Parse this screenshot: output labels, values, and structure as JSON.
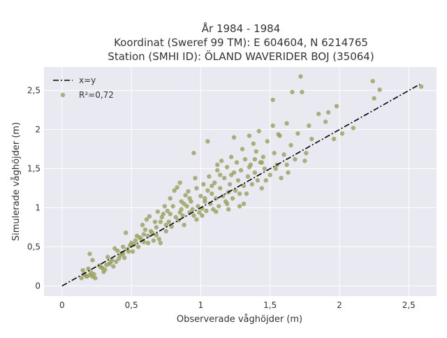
{
  "chart_data": {
    "type": "scatter",
    "title_lines": [
      "År 1984 - 1984",
      "Koordinat (Sweref 99 TM): E 604604, N 6214765",
      "Station (SMHI ID): ÖLAND WAVERIDER BOJ (35064)"
    ],
    "xlabel": "Observerade våghöjder (m)",
    "ylabel": "Simulerade våghöjder (m)",
    "xlim": [
      -0.13,
      2.7
    ],
    "ylim": [
      -0.13,
      2.8
    ],
    "xticks": [
      0,
      0.5,
      1,
      1.5,
      2,
      2.5
    ],
    "xtick_labels": [
      "0",
      "0,5",
      "1",
      "1,5",
      "2",
      "2,5"
    ],
    "yticks": [
      0,
      0.5,
      1,
      1.5,
      2,
      2.5
    ],
    "ytick_labels": [
      "0",
      "0,5",
      "1",
      "1,5",
      "2",
      "2,5"
    ],
    "grid": true,
    "legend_position": "top-left",
    "colors": {
      "points": "#98a05a",
      "line": "#000000",
      "plot_bg": "#e9e9f2"
    },
    "reference_line": {
      "name": "x=y",
      "style": "dash-dot",
      "from": [
        0,
        0
      ],
      "to": [
        2.58,
        2.58
      ]
    },
    "series": [
      {
        "name": "R²=0,72",
        "points": [
          [
            0.14,
            0.1
          ],
          [
            0.16,
            0.15
          ],
          [
            0.18,
            0.12
          ],
          [
            0.2,
            0.14
          ],
          [
            0.22,
            0.12
          ],
          [
            0.15,
            0.2
          ],
          [
            0.19,
            0.22
          ],
          [
            0.24,
            0.1
          ],
          [
            0.17,
            0.13
          ],
          [
            0.21,
            0.17
          ],
          [
            0.23,
            0.15
          ],
          [
            0.2,
            0.41
          ],
          [
            0.22,
            0.33
          ],
          [
            0.27,
            0.26
          ],
          [
            0.3,
            0.18
          ],
          [
            0.29,
            0.23
          ],
          [
            0.31,
            0.21
          ],
          [
            0.34,
            0.28
          ],
          [
            0.36,
            0.33
          ],
          [
            0.33,
            0.37
          ],
          [
            0.37,
            0.25
          ],
          [
            0.39,
            0.31
          ],
          [
            0.41,
            0.35
          ],
          [
            0.38,
            0.48
          ],
          [
            0.4,
            0.45
          ],
          [
            0.43,
            0.42
          ],
          [
            0.42,
            0.39
          ],
          [
            0.44,
            0.5
          ],
          [
            0.45,
            0.36
          ],
          [
            0.47,
            0.47
          ],
          [
            0.49,
            0.52
          ],
          [
            0.51,
            0.44
          ],
          [
            0.5,
            0.55
          ],
          [
            0.46,
            0.68
          ],
          [
            0.53,
            0.58
          ],
          [
            0.55,
            0.5
          ],
          [
            0.57,
            0.6
          ],
          [
            0.54,
            0.64
          ],
          [
            0.59,
            0.56
          ],
          [
            0.6,
            0.72
          ],
          [
            0.62,
            0.64
          ],
          [
            0.58,
            0.78
          ],
          [
            0.61,
            0.85
          ],
          [
            0.64,
            0.7
          ],
          [
            0.66,
            0.58
          ],
          [
            0.63,
            0.89
          ],
          [
            0.68,
            0.75
          ],
          [
            0.7,
            0.6
          ],
          [
            0.67,
            0.82
          ],
          [
            0.72,
            0.88
          ],
          [
            0.69,
            0.95
          ],
          [
            0.71,
            0.55
          ],
          [
            0.73,
            0.92
          ],
          [
            0.75,
            0.7
          ],
          [
            0.74,
            1.02
          ],
          [
            0.77,
            0.82
          ],
          [
            0.79,
            0.76
          ],
          [
            0.76,
            0.96
          ],
          [
            0.8,
            1.02
          ],
          [
            0.82,
            0.88
          ],
          [
            0.78,
            1.12
          ],
          [
            0.84,
            0.84
          ],
          [
            0.85,
            0.94
          ],
          [
            0.86,
            1.08
          ],
          [
            0.88,
            0.78
          ],
          [
            0.83,
            1.26
          ],
          [
            0.87,
            0.9
          ],
          [
            0.89,
            1.16
          ],
          [
            0.9,
            1.02
          ],
          [
            0.92,
            0.94
          ],
          [
            0.91,
            1.21
          ],
          [
            0.94,
            0.98
          ],
          [
            0.93,
            1.08
          ],
          [
            0.95,
            0.9
          ],
          [
            0.97,
            1.25
          ],
          [
            0.96,
            1.38
          ],
          [
            0.98,
            1.02
          ],
          [
            0.99,
            0.94
          ],
          [
            1.0,
            1.15
          ],
          [
            1.01,
            0.99
          ],
          [
            1.02,
            1.3
          ],
          [
            1.03,
            1.08
          ],
          [
            1.04,
            0.96
          ],
          [
            1.05,
            1.22
          ],
          [
            1.06,
            1.4
          ],
          [
            1.07,
            1.05
          ],
          [
            1.08,
            1.18
          ],
          [
            1.09,
            0.98
          ],
          [
            1.1,
            1.32
          ],
          [
            1.11,
            1.12
          ],
          [
            1.12,
            1.48
          ],
          [
            1.13,
            1.02
          ],
          [
            1.14,
            1.25
          ],
          [
            1.15,
            1.6
          ],
          [
            1.16,
            1.15
          ],
          [
            1.17,
            1.38
          ],
          [
            1.18,
            1.08
          ],
          [
            1.19,
            1.52
          ],
          [
            1.2,
            1.2
          ],
          [
            1.21,
            1.3
          ],
          [
            1.22,
            1.65
          ],
          [
            1.23,
            1.12
          ],
          [
            1.24,
            1.45
          ],
          [
            1.25,
            1.22
          ],
          [
            1.26,
            1.58
          ],
          [
            1.27,
            1.35
          ],
          [
            1.28,
            1.02
          ],
          [
            1.29,
            1.48
          ],
          [
            1.3,
            1.75
          ],
          [
            1.31,
            1.28
          ],
          [
            1.32,
            1.62
          ],
          [
            1.33,
            1.18
          ],
          [
            1.34,
            1.4
          ],
          [
            1.35,
            1.92
          ],
          [
            1.36,
            1.55
          ],
          [
            1.37,
            1.3
          ],
          [
            1.38,
            1.82
          ],
          [
            1.39,
            1.45
          ],
          [
            1.4,
            1.72
          ],
          [
            1.41,
            1.35
          ],
          [
            1.42,
            1.98
          ],
          [
            1.43,
            1.58
          ],
          [
            1.44,
            1.25
          ],
          [
            1.45,
            1.65
          ],
          [
            1.46,
            1.5
          ],
          [
            1.48,
            1.85
          ],
          [
            1.5,
            1.42
          ],
          [
            1.52,
            2.05
          ],
          [
            1.53,
            1.7
          ],
          [
            1.55,
            1.55
          ],
          [
            1.57,
            1.92
          ],
          [
            1.58,
            1.38
          ],
          [
            1.6,
            1.68
          ],
          [
            1.62,
            2.08
          ],
          [
            1.63,
            1.45
          ],
          [
            1.65,
            1.8
          ],
          [
            1.68,
            1.62
          ],
          [
            1.7,
            1.95
          ],
          [
            1.72,
            2.68
          ],
          [
            1.75,
            1.6
          ],
          [
            1.78,
            2.05
          ],
          [
            1.8,
            1.88
          ],
          [
            1.85,
            2.2
          ],
          [
            1.9,
            2.1
          ],
          [
            1.92,
            2.22
          ],
          [
            1.98,
            2.3
          ],
          [
            2.02,
            1.95
          ],
          [
            2.1,
            2.02
          ],
          [
            2.25,
            2.4
          ],
          [
            2.24,
            2.62
          ],
          [
            2.29,
            2.51
          ],
          [
            2.59,
            2.55
          ],
          [
            1.52,
            2.38
          ],
          [
            1.73,
            2.48
          ],
          [
            1.66,
            2.48
          ],
          [
            1.56,
            1.94
          ],
          [
            1.24,
            1.9
          ],
          [
            1.05,
            1.85
          ],
          [
            0.95,
            1.7
          ],
          [
            0.85,
            1.32
          ],
          [
            1.12,
            1.55
          ],
          [
            1.31,
            1.05
          ],
          [
            1.35,
            1.52
          ],
          [
            1.2,
            0.98
          ],
          [
            1.08,
            1.28
          ],
          [
            0.75,
            0.78
          ],
          [
            0.65,
            0.68
          ],
          [
            0.56,
            0.62
          ],
          [
            0.52,
            0.53
          ],
          [
            0.48,
            0.44
          ],
          [
            0.44,
            0.41
          ],
          [
            0.35,
            0.3
          ],
          [
            0.32,
            0.27
          ],
          [
            0.28,
            0.24
          ],
          [
            1.14,
            1.42
          ],
          [
            1.28,
            1.18
          ],
          [
            1.44,
            1.58
          ],
          [
            1.62,
            1.55
          ],
          [
            1.76,
            1.7
          ],
          [
            1.96,
            1.88
          ],
          [
            0.97,
            0.85
          ],
          [
            1.01,
            0.9
          ],
          [
            0.88,
            1.05
          ],
          [
            0.81,
            1.22
          ],
          [
            0.71,
            0.82
          ],
          [
            0.62,
            0.55
          ],
          [
            0.59,
            0.66
          ],
          [
            0.68,
            0.65
          ],
          [
            0.78,
            0.92
          ],
          [
            0.92,
            1.12
          ],
          [
            1.22,
            1.42
          ],
          [
            1.39,
            1.62
          ],
          [
            1.47,
            1.35
          ],
          [
            1.54,
            1.5
          ],
          [
            1.19,
            1.05
          ],
          [
            1.11,
            0.95
          ],
          [
            1.03,
            1.12
          ],
          [
            0.86,
            0.98
          ]
        ]
      }
    ]
  }
}
